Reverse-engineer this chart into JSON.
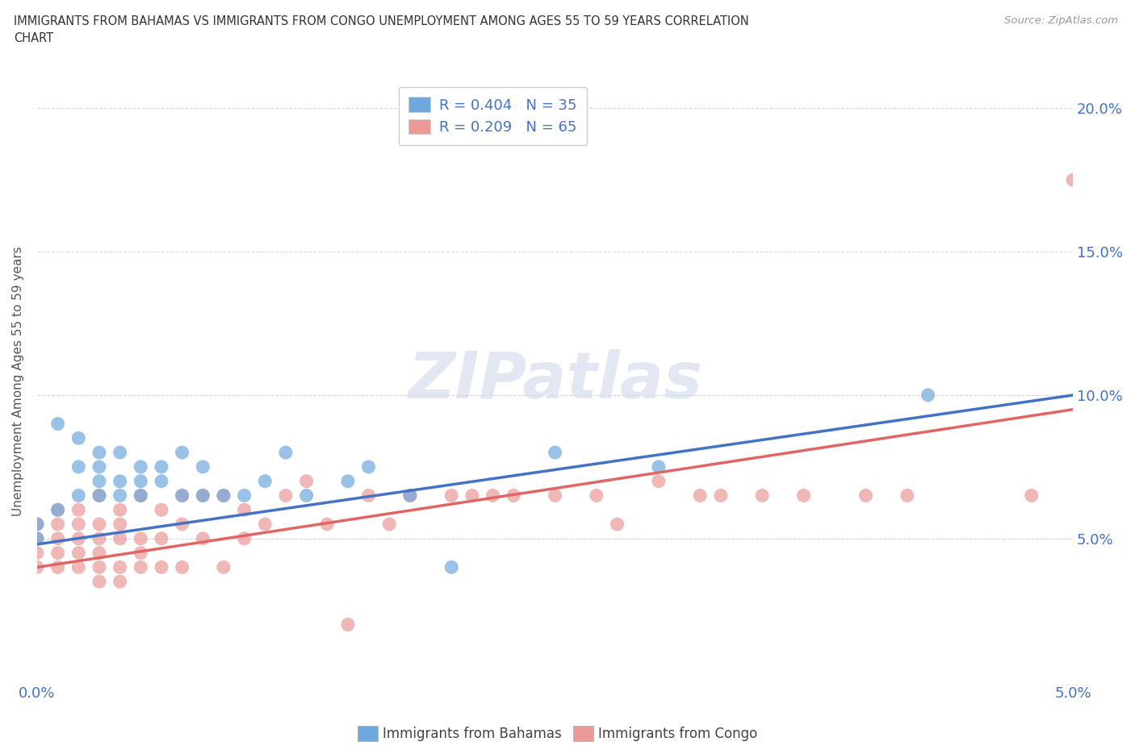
{
  "title": "IMMIGRANTS FROM BAHAMAS VS IMMIGRANTS FROM CONGO UNEMPLOYMENT AMONG AGES 55 TO 59 YEARS CORRELATION\nCHART",
  "source": "Source: ZipAtlas.com",
  "ylabel": "Unemployment Among Ages 55 to 59 years",
  "xlim": [
    0.0,
    0.05
  ],
  "ylim": [
    0.0,
    0.21
  ],
  "x_ticks": [
    0.0,
    0.01,
    0.02,
    0.03,
    0.04,
    0.05
  ],
  "x_tick_labels": [
    "0.0%",
    "",
    "",
    "",
    "",
    "5.0%"
  ],
  "y_ticks": [
    0.0,
    0.05,
    0.1,
    0.15,
    0.2
  ],
  "y_tick_labels": [
    "",
    "5.0%",
    "10.0%",
    "15.0%",
    "20.0%"
  ],
  "bahamas_color": "#6fa8dc",
  "congo_color": "#ea9999",
  "bahamas_line_color": "#4472c4",
  "congo_line_color": "#e06666",
  "bahamas_R": 0.404,
  "bahamas_N": 35,
  "congo_R": 0.209,
  "congo_N": 65,
  "legend_label_bahamas": "Immigrants from Bahamas",
  "legend_label_congo": "Immigrants from Congo",
  "watermark_text": "ZIPatlas",
  "background_color": "#ffffff",
  "grid_color": "#cccccc",
  "title_color": "#333333",
  "axis_tick_color": "#4472c4",
  "bahamas_scatter_x": [
    0.0,
    0.0,
    0.001,
    0.001,
    0.002,
    0.002,
    0.002,
    0.003,
    0.003,
    0.003,
    0.003,
    0.004,
    0.004,
    0.004,
    0.005,
    0.005,
    0.005,
    0.006,
    0.006,
    0.007,
    0.007,
    0.008,
    0.008,
    0.009,
    0.01,
    0.011,
    0.012,
    0.013,
    0.015,
    0.016,
    0.018,
    0.02,
    0.025,
    0.03,
    0.043
  ],
  "bahamas_scatter_y": [
    0.05,
    0.055,
    0.09,
    0.06,
    0.065,
    0.075,
    0.085,
    0.065,
    0.07,
    0.075,
    0.08,
    0.065,
    0.07,
    0.08,
    0.07,
    0.075,
    0.065,
    0.07,
    0.075,
    0.065,
    0.08,
    0.075,
    0.065,
    0.065,
    0.065,
    0.07,
    0.08,
    0.065,
    0.07,
    0.075,
    0.065,
    0.04,
    0.08,
    0.075,
    0.1
  ],
  "congo_scatter_x": [
    0.0,
    0.0,
    0.0,
    0.0,
    0.001,
    0.001,
    0.001,
    0.001,
    0.001,
    0.002,
    0.002,
    0.002,
    0.002,
    0.002,
    0.003,
    0.003,
    0.003,
    0.003,
    0.003,
    0.003,
    0.004,
    0.004,
    0.004,
    0.004,
    0.004,
    0.005,
    0.005,
    0.005,
    0.005,
    0.006,
    0.006,
    0.006,
    0.007,
    0.007,
    0.007,
    0.008,
    0.008,
    0.009,
    0.009,
    0.01,
    0.01,
    0.011,
    0.012,
    0.013,
    0.014,
    0.015,
    0.016,
    0.017,
    0.018,
    0.02,
    0.021,
    0.022,
    0.023,
    0.025,
    0.027,
    0.028,
    0.03,
    0.032,
    0.033,
    0.035,
    0.037,
    0.04,
    0.042,
    0.048,
    0.05
  ],
  "congo_scatter_y": [
    0.04,
    0.045,
    0.05,
    0.055,
    0.04,
    0.045,
    0.05,
    0.055,
    0.06,
    0.04,
    0.045,
    0.05,
    0.055,
    0.06,
    0.035,
    0.04,
    0.045,
    0.05,
    0.055,
    0.065,
    0.035,
    0.04,
    0.05,
    0.055,
    0.06,
    0.04,
    0.045,
    0.05,
    0.065,
    0.04,
    0.05,
    0.06,
    0.04,
    0.055,
    0.065,
    0.05,
    0.065,
    0.04,
    0.065,
    0.05,
    0.06,
    0.055,
    0.065,
    0.07,
    0.055,
    0.02,
    0.065,
    0.055,
    0.065,
    0.065,
    0.065,
    0.065,
    0.065,
    0.065,
    0.065,
    0.055,
    0.07,
    0.065,
    0.065,
    0.065,
    0.065,
    0.065,
    0.065,
    0.065,
    0.175
  ],
  "bahamas_line_x": [
    0.0,
    0.05
  ],
  "bahamas_line_y": [
    0.048,
    0.1
  ],
  "congo_line_x": [
    0.0,
    0.05
  ],
  "congo_line_y": [
    0.04,
    0.095
  ]
}
